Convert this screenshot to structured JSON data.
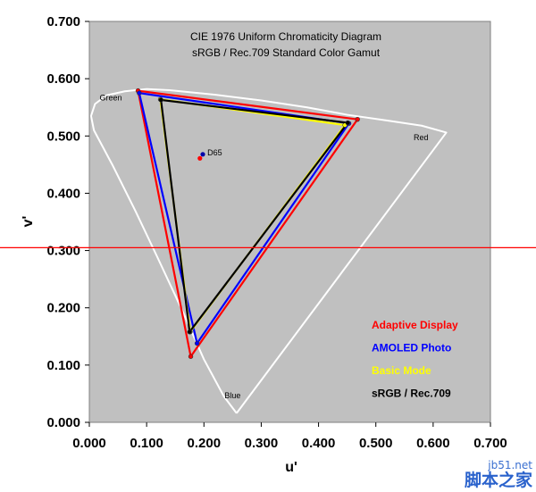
{
  "chart_data": {
    "type": "scatter",
    "title": "CIE 1976 Uniform Chromaticity Diagram",
    "subtitle": "sRGB / Rec.709 Standard Color Gamut",
    "xlabel": "u'",
    "ylabel": "v'",
    "xlim": [
      0,
      0.7
    ],
    "ylim": [
      0,
      0.7
    ],
    "x_ticks": [
      "0.000",
      "0.100",
      "0.200",
      "0.300",
      "0.400",
      "0.500",
      "0.600",
      "0.700"
    ],
    "y_ticks": [
      "0.000",
      "0.100",
      "0.200",
      "0.300",
      "0.400",
      "0.500",
      "0.600",
      "0.700"
    ],
    "grid": false,
    "legend_position": "bottom-right",
    "background_color": "#c0c0c0",
    "spectral_locus_color": "#ffffff",
    "spectral_locus": [
      [
        0.257,
        0.016
      ],
      [
        0.235,
        0.045
      ],
      [
        0.2,
        0.11
      ],
      [
        0.16,
        0.2
      ],
      [
        0.118,
        0.29
      ],
      [
        0.08,
        0.37
      ],
      [
        0.04,
        0.45
      ],
      [
        0.008,
        0.51
      ],
      [
        0.003,
        0.535
      ],
      [
        0.01,
        0.556
      ],
      [
        0.03,
        0.571
      ],
      [
        0.062,
        0.578
      ],
      [
        0.1,
        0.582
      ],
      [
        0.14,
        0.58
      ],
      [
        0.22,
        0.572
      ],
      [
        0.3,
        0.562
      ],
      [
        0.38,
        0.55
      ],
      [
        0.45,
        0.537
      ],
      [
        0.52,
        0.527
      ],
      [
        0.58,
        0.518
      ],
      [
        0.623,
        0.506
      ],
      [
        0.257,
        0.016
      ]
    ],
    "series": [
      {
        "name": "Adaptive Display",
        "color": "#ff0000",
        "points": [
          [
            0.468,
            0.529
          ],
          [
            0.085,
            0.579
          ],
          [
            0.177,
            0.115
          ]
        ]
      },
      {
        "name": "AMOLED Photo",
        "color": "#0000ff",
        "points": [
          [
            0.453,
            0.522
          ],
          [
            0.087,
            0.575
          ],
          [
            0.188,
            0.138
          ]
        ]
      },
      {
        "name": "Basic Mode",
        "color": "#ffff00",
        "points": [
          [
            0.446,
            0.519
          ],
          [
            0.124,
            0.564
          ],
          [
            0.176,
            0.158
          ]
        ]
      },
      {
        "name": "sRGB / Rec.709",
        "color": "#000000",
        "points": [
          [
            0.451,
            0.523
          ],
          [
            0.125,
            0.563
          ],
          [
            0.175,
            0.158
          ]
        ]
      }
    ],
    "white_points": [
      {
        "label": "D65",
        "x": 0.198,
        "y": 0.468,
        "color": "#0000aa"
      },
      {
        "x": 0.193,
        "y": 0.461,
        "color": "#ff0000"
      }
    ],
    "annotations": [
      {
        "text": "Green",
        "x": 0.018,
        "y": 0.562
      },
      {
        "text": "Red",
        "x": 0.566,
        "y": 0.493
      },
      {
        "text": "Blue",
        "x": 0.236,
        "y": 0.042
      },
      {
        "text": "D65",
        "x": 0.206,
        "y": 0.466
      }
    ],
    "reference_line": {
      "y": 0.305,
      "color": "#ff0000"
    }
  },
  "watermark": {
    "url": "jb51.net",
    "text": "脚本之家"
  }
}
